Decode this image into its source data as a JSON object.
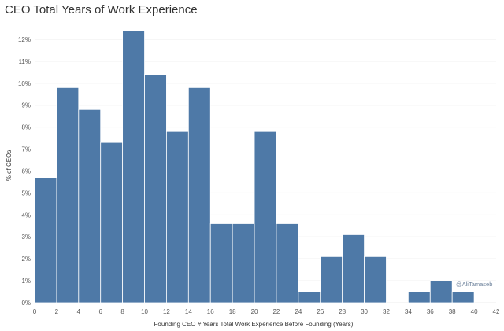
{
  "chart_data": {
    "type": "bar",
    "title": "CEO Total Years of Work Experience",
    "xlabel": "Founding CEO # Years Total Work Experience Before Founding (Years)",
    "ylabel": "% of CEOs",
    "bin_width": 2,
    "xlim": [
      0,
      42
    ],
    "ylim": [
      0,
      12.5
    ],
    "x_ticks": [
      0,
      2,
      4,
      6,
      8,
      10,
      12,
      14,
      16,
      18,
      20,
      22,
      24,
      26,
      28,
      30,
      32,
      34,
      36,
      38,
      40,
      42
    ],
    "y_ticks": [
      "0%",
      "1%",
      "2%",
      "3%",
      "4%",
      "5%",
      "6%",
      "7%",
      "8%",
      "9%",
      "10%",
      "11%",
      "12%"
    ],
    "bins": [
      {
        "start": 0,
        "value": 5.7
      },
      {
        "start": 2,
        "value": 9.8
      },
      {
        "start": 4,
        "value": 8.8
      },
      {
        "start": 6,
        "value": 7.3
      },
      {
        "start": 8,
        "value": 12.4
      },
      {
        "start": 10,
        "value": 10.4
      },
      {
        "start": 12,
        "value": 7.8
      },
      {
        "start": 14,
        "value": 9.8
      },
      {
        "start": 16,
        "value": 3.6
      },
      {
        "start": 18,
        "value": 3.6
      },
      {
        "start": 20,
        "value": 7.8
      },
      {
        "start": 22,
        "value": 3.6
      },
      {
        "start": 24,
        "value": 0.5
      },
      {
        "start": 26,
        "value": 2.1
      },
      {
        "start": 28,
        "value": 3.1
      },
      {
        "start": 30,
        "value": 2.1
      },
      {
        "start": 34,
        "value": 0.5
      },
      {
        "start": 36,
        "value": 1.0
      },
      {
        "start": 38,
        "value": 0.5
      }
    ],
    "bar_color": "#4e79a7",
    "grid": true,
    "credit": "@AliTamaseb"
  }
}
